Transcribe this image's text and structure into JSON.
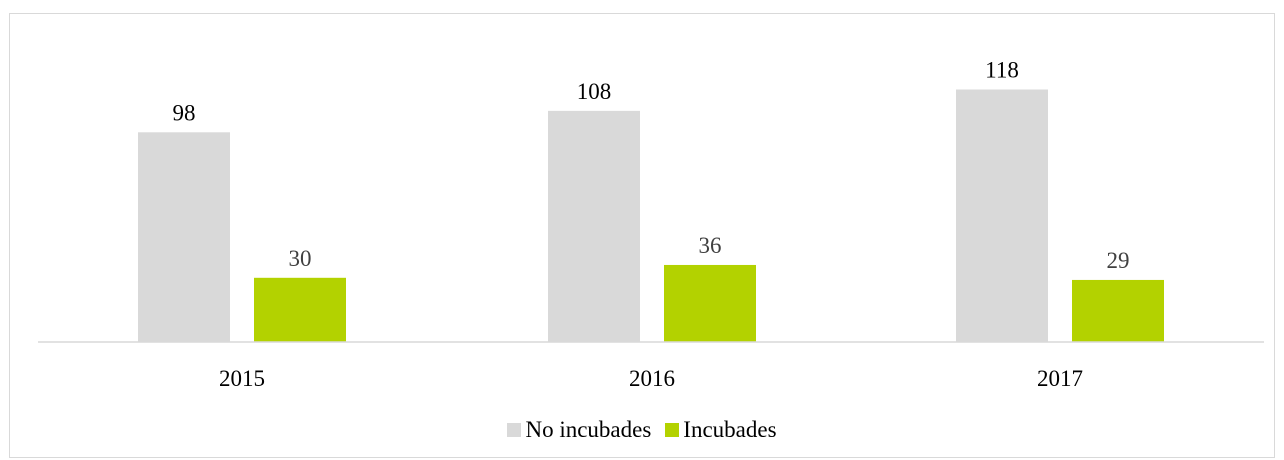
{
  "chart_data": {
    "type": "bar",
    "title": "",
    "xlabel": "",
    "ylabel": "",
    "categories": [
      "2015",
      "2016",
      "2017"
    ],
    "series": [
      {
        "name": "No incubades",
        "values": [
          98,
          108,
          118
        ],
        "color": "#d9d9d9",
        "label_color": "#000000"
      },
      {
        "name": "Incubades",
        "values": [
          30,
          36,
          29
        ],
        "color": "#b3d200",
        "label_color": "#404040"
      }
    ],
    "ylim": [
      0,
      150
    ],
    "grid": false,
    "legend": "bottom",
    "data_labels": true
  }
}
